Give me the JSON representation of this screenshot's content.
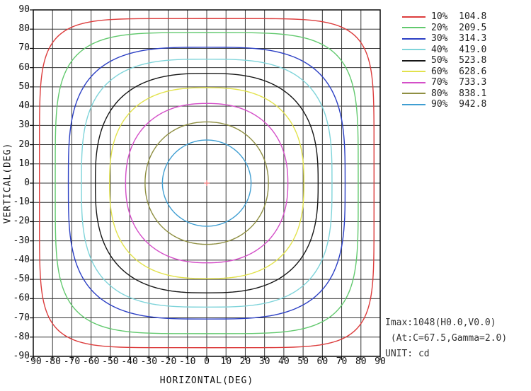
{
  "annotations": {
    "imax_line": "Imax:1048(H0.0,V0.0)",
    "at_line": " (At:C=67.5,Gamma=2.0)",
    "unit_line": "UNIT: cd"
  },
  "chart_data": {
    "type": "contour",
    "subtype": "isocandela-intensity-distribution",
    "xlabel": "HORIZONTAL(DEG)",
    "ylabel": "VERTICAL(DEG)",
    "xlim": [
      -90,
      90
    ],
    "ylim": [
      -90,
      90
    ],
    "grid": true,
    "grid_step_deg": 10,
    "x_ticks": [
      -90,
      -80,
      -70,
      -60,
      -50,
      -40,
      -30,
      -20,
      -10,
      0,
      10,
      20,
      30,
      40,
      50,
      60,
      70,
      80,
      90
    ],
    "y_ticks": [
      90,
      80,
      70,
      60,
      50,
      40,
      30,
      20,
      10,
      0,
      -10,
      -20,
      -30,
      -40,
      -50,
      -60,
      -70,
      -80,
      -90
    ],
    "legend_position": "top-right",
    "unit": "cd",
    "imax_cd": 1048,
    "imax_location": {
      "h_deg": 0.0,
      "v_deg": 0.0
    },
    "center_marker": {
      "h_deg": 0,
      "v_deg": 0,
      "color": "#ef8181"
    },
    "levels": [
      {
        "percent": 10,
        "percent_label": "10%",
        "intensity_cd": 104.8,
        "intensity_label": "104.8",
        "color": "#dc3c3c",
        "h_extent_deg": 86.8,
        "v_extent_deg": 85.5,
        "squareness": 6.0
      },
      {
        "percent": 20,
        "percent_label": "20%",
        "intensity_cd": 209.5,
        "intensity_label": "209.5",
        "color": "#62c96e",
        "h_extent_deg": 78.6,
        "v_extent_deg": 78.2,
        "squareness": 4.4
      },
      {
        "percent": 30,
        "percent_label": "30%",
        "intensity_cd": 314.3,
        "intensity_label": "314.3",
        "color": "#2b3fc4",
        "h_extent_deg": 71.8,
        "v_extent_deg": 70.6,
        "squareness": 3.3
      },
      {
        "percent": 40,
        "percent_label": "40%",
        "intensity_cd": 419.0,
        "intensity_label": "419.0",
        "color": "#7fd4da",
        "h_extent_deg": 65.0,
        "v_extent_deg": 64.4,
        "squareness": 3.1
      },
      {
        "percent": 50,
        "percent_label": "50%",
        "intensity_cd": 523.8,
        "intensity_label": "523.8",
        "color": "#161616",
        "h_extent_deg": 57.8,
        "v_extent_deg": 57.0,
        "squareness": 2.7
      },
      {
        "percent": 60,
        "percent_label": "60%",
        "intensity_cd": 628.6,
        "intensity_label": "628.6",
        "color": "#e2e24c",
        "h_extent_deg": 50.4,
        "v_extent_deg": 49.6,
        "squareness": 2.6
      },
      {
        "percent": 70,
        "percent_label": "70%",
        "intensity_cd": 733.3,
        "intensity_label": "733.3",
        "color": "#d44fc8",
        "h_extent_deg": 42.1,
        "v_extent_deg": 41.4,
        "squareness": 2.3
      },
      {
        "percent": 80,
        "percent_label": "80%",
        "intensity_cd": 838.1,
        "intensity_label": "838.1",
        "color": "#8f8f42",
        "h_extent_deg": 32.0,
        "v_extent_deg": 31.8,
        "squareness": 2.1
      },
      {
        "percent": 90,
        "percent_label": "90%",
        "intensity_cd": 942.8,
        "intensity_label": "942.8",
        "color": "#3f9ed2",
        "h_extent_deg": 23.0,
        "v_extent_deg": 22.4,
        "squareness": 2.0
      }
    ],
    "style": {
      "grid_color": "#363636",
      "frame_color": "#0a0a0a",
      "background": "#ffffff"
    }
  }
}
